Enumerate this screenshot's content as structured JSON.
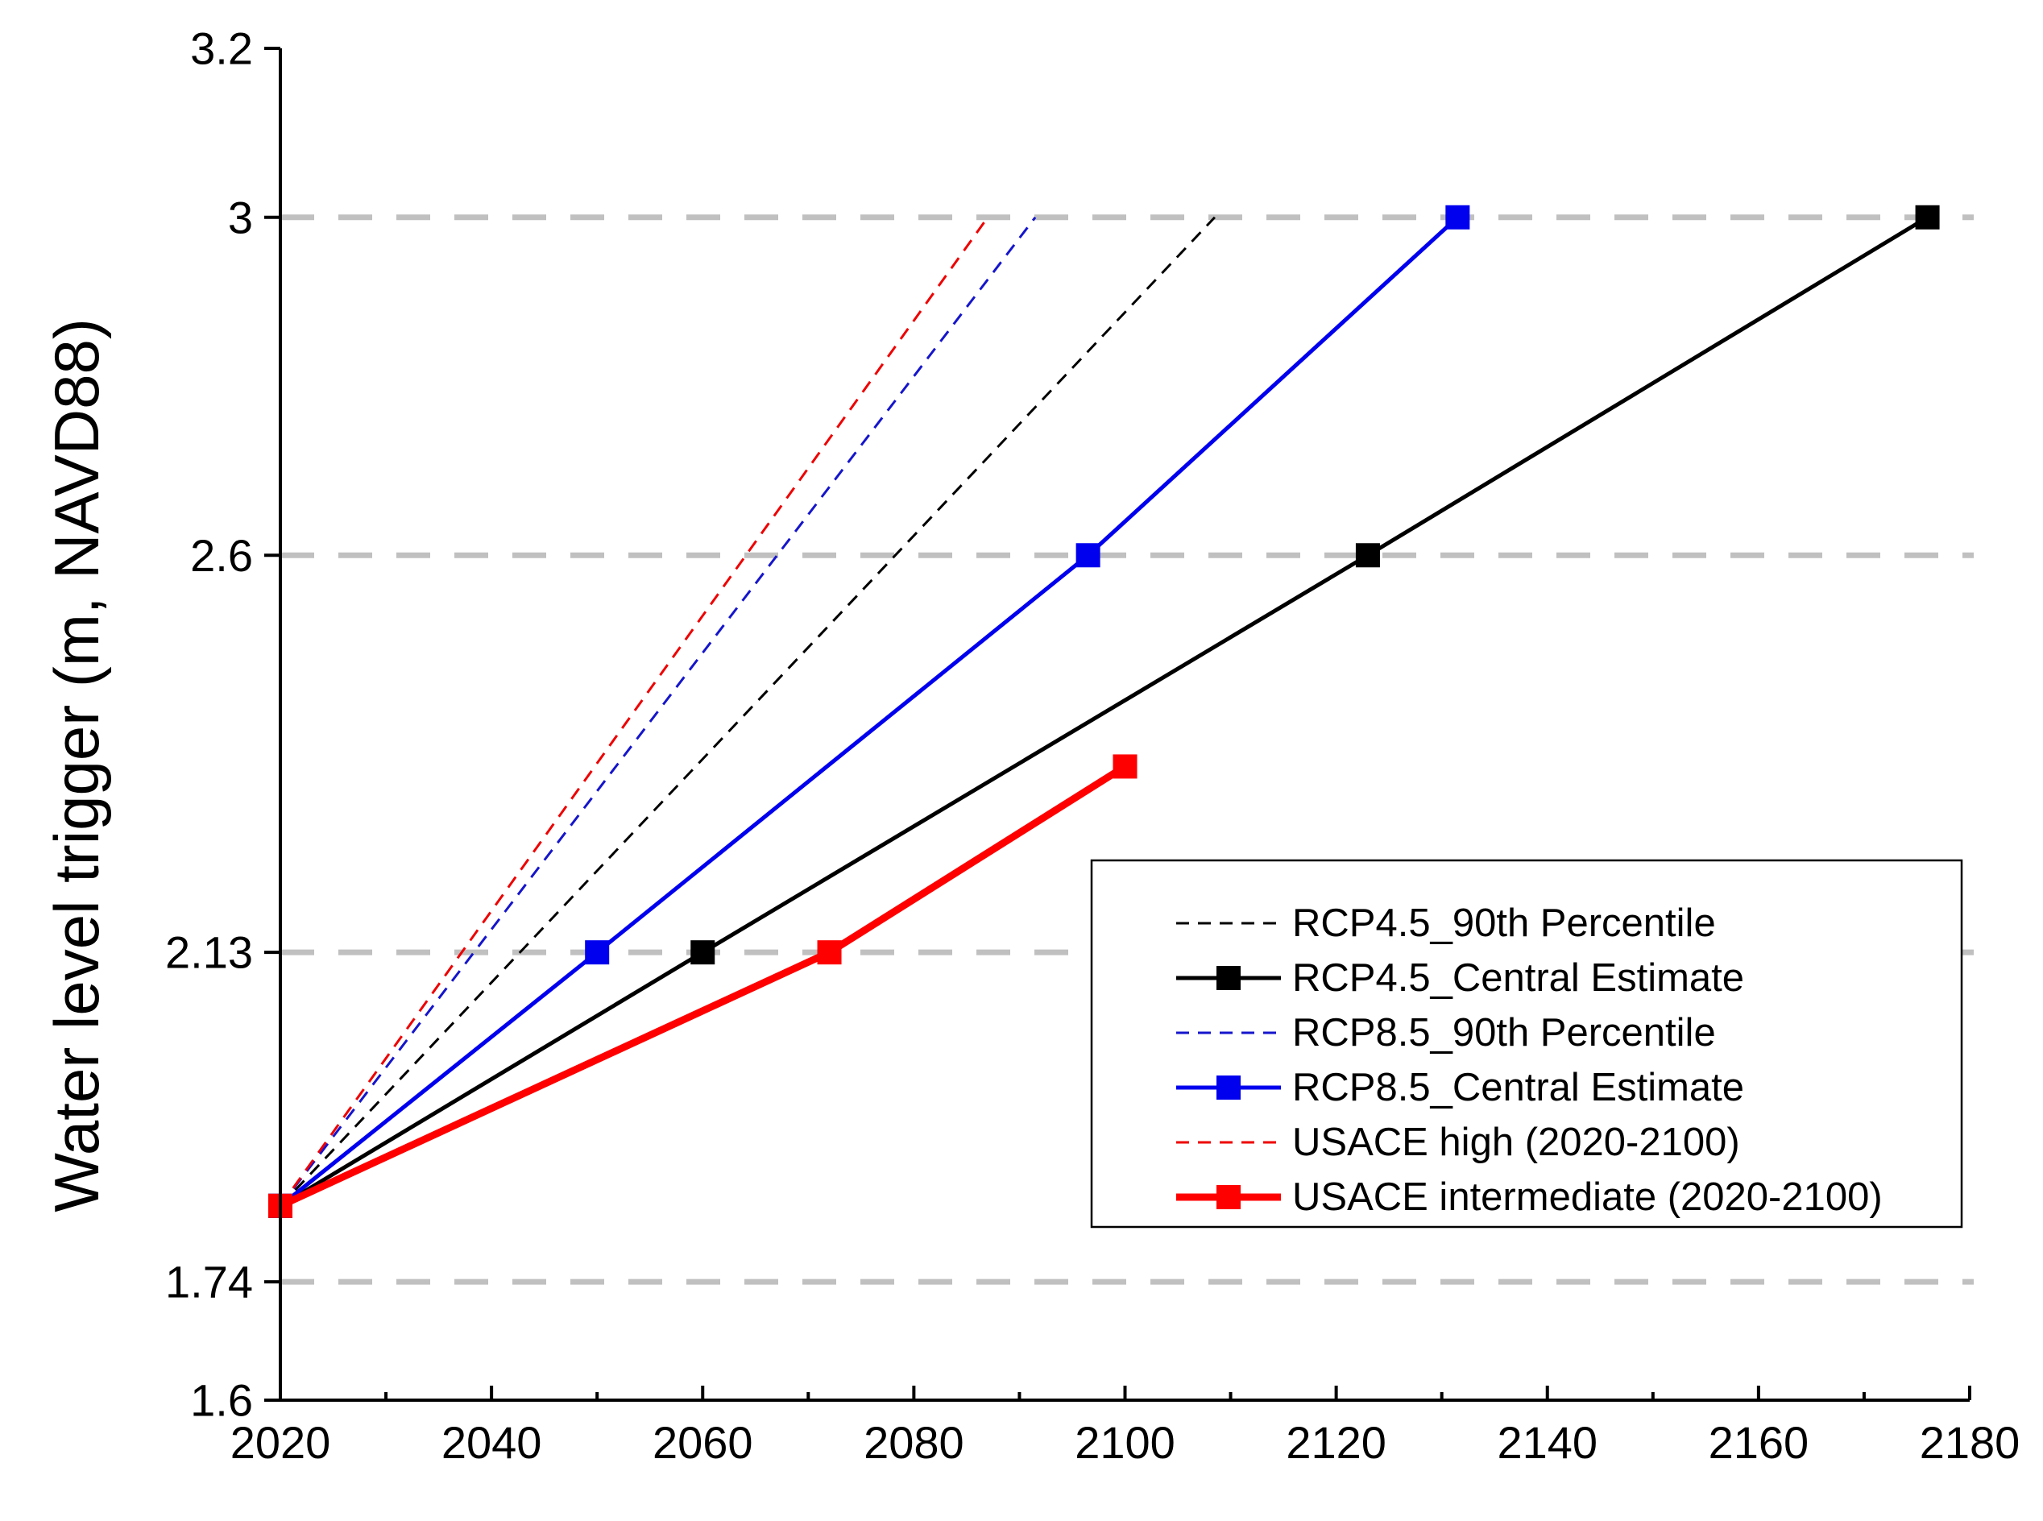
{
  "chart_data": {
    "type": "line",
    "title": "",
    "xlabel": "",
    "ylabel": "Water level trigger (m, NAVD88)",
    "xlim": [
      2020,
      2180
    ],
    "ylim": [
      1.6,
      3.2
    ],
    "x_ticks": [
      2020,
      2040,
      2060,
      2080,
      2100,
      2120,
      2140,
      2160,
      2180
    ],
    "x_tick_labels": [
      "2020",
      "2040",
      "2060",
      "2080",
      "2100",
      "2120",
      "2140",
      "2160",
      "2180"
    ],
    "y_ticks": [
      1.6,
      1.74,
      2.13,
      2.6,
      3.0,
      3.2
    ],
    "y_tick_labels": [
      "1.6",
      "1.74",
      "2.13",
      "2.6",
      "3",
      "3.2"
    ],
    "reference_lines": [
      1.74,
      2.13,
      2.6,
      3.0
    ],
    "reference_line_color": "#c0c0c0",
    "legend_position": "center-right",
    "series": [
      {
        "name": "RCP4.5_90th Percentile",
        "color": "#000000",
        "style": "dashed",
        "marker": "none",
        "x": [
          2020,
          2108.5
        ],
        "y": [
          1.83,
          3.0
        ]
      },
      {
        "name": "RCP4.5_Central Estimate",
        "color": "#000000",
        "style": "solid",
        "marker": "square",
        "x": [
          2020,
          2060,
          2123,
          2176
        ],
        "y": [
          1.83,
          2.13,
          2.6,
          3.0
        ]
      },
      {
        "name": "RCP8.5_90th Percentile",
        "color": "#1515cc",
        "style": "dashed",
        "marker": "none",
        "x": [
          2020,
          2091.5
        ],
        "y": [
          1.83,
          3.0
        ]
      },
      {
        "name": "RCP8.5_Central Estimate",
        "color": "#0000ee",
        "style": "solid",
        "marker": "square",
        "x": [
          2020,
          2050,
          2096.5,
          2131.5
        ],
        "y": [
          1.83,
          2.13,
          2.6,
          3.0
        ]
      },
      {
        "name": "USACE high (2020-2100)",
        "color": "#ee0000",
        "style": "dashed",
        "marker": "none",
        "x": [
          2020,
          2087
        ],
        "y": [
          1.83,
          3.0
        ]
      },
      {
        "name": "USACE intermediate (2020-2100)",
        "color": "#ff0000",
        "style": "solid-thick",
        "marker": "square",
        "x": [
          2020,
          2072,
          2100
        ],
        "y": [
          1.83,
          2.13,
          2.35
        ]
      }
    ]
  }
}
